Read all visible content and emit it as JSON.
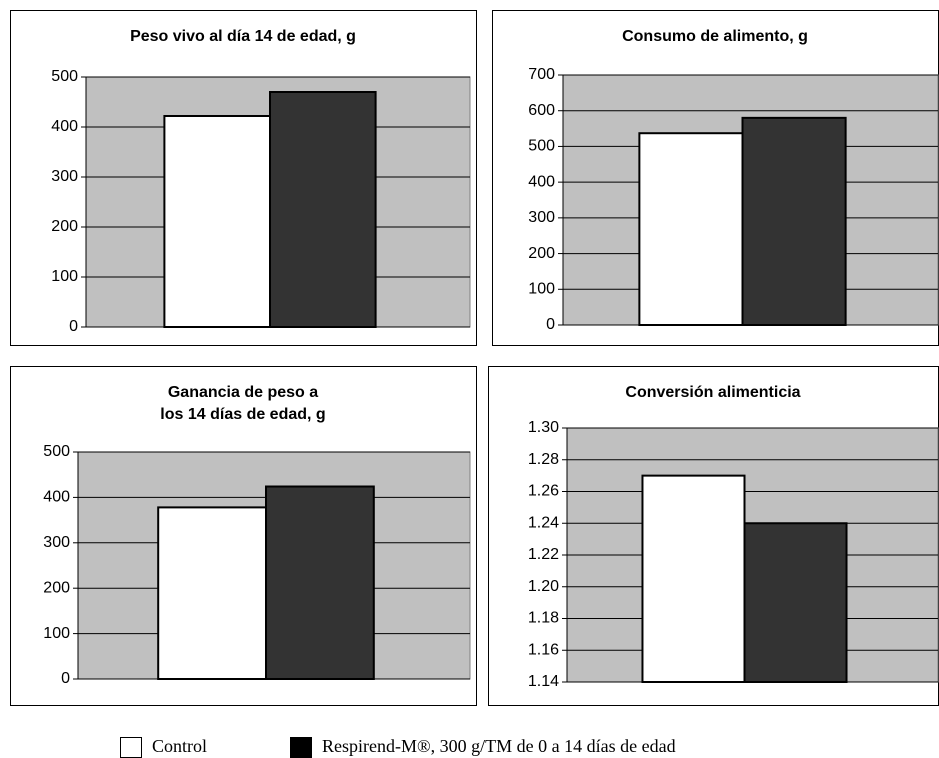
{
  "chart_data": [
    {
      "type": "bar",
      "title": [
        "Peso vivo al día 14 de edad, g"
      ],
      "values": [
        422,
        470
      ],
      "colors": [
        "#ffffff",
        "#333333"
      ],
      "ylim": [
        0,
        500
      ],
      "yticks": [
        0,
        100,
        200,
        300,
        400,
        500
      ],
      "grid": true
    },
    {
      "type": "bar",
      "title": [
        "Consumo de alimento, g"
      ],
      "values": [
        537,
        580
      ],
      "colors": [
        "#ffffff",
        "#333333"
      ],
      "ylim": [
        0,
        700
      ],
      "yticks": [
        0,
        100,
        200,
        300,
        400,
        500,
        600,
        700
      ],
      "grid": true
    },
    {
      "type": "bar",
      "title": [
        "Ganancia de peso a",
        "los 14 días de edad, g"
      ],
      "values": [
        378,
        424
      ],
      "colors": [
        "#ffffff",
        "#333333"
      ],
      "ylim": [
        0,
        500
      ],
      "yticks": [
        0,
        100,
        200,
        300,
        400,
        500
      ],
      "grid": true
    },
    {
      "type": "bar",
      "title": [
        "Conversión alimenticia"
      ],
      "values": [
        1.27,
        1.24
      ],
      "colors": [
        "#ffffff",
        "#333333"
      ],
      "ylim": [
        1.14,
        1.3
      ],
      "yticks": [
        {
          "value": 1.14,
          "label": "1.14"
        },
        {
          "value": 1.16,
          "label": "1.16"
        },
        {
          "value": 1.18,
          "label": "1.18"
        },
        {
          "value": 1.2,
          "label": "1.20"
        },
        {
          "value": 1.22,
          "label": "1.22"
        },
        {
          "value": 1.24,
          "label": "1.24"
        },
        {
          "value": 1.26,
          "label": "1.26"
        },
        {
          "value": 1.28,
          "label": "1.28"
        },
        {
          "value": 1.3,
          "label": "1.30"
        }
      ],
      "grid": true
    }
  ],
  "legend": [
    {
      "name": "Control",
      "color": "#ffffff"
    },
    {
      "name": "Respirend-M®, 300 g/TM de 0 a 14 días de edad",
      "color": "#000000"
    }
  ]
}
